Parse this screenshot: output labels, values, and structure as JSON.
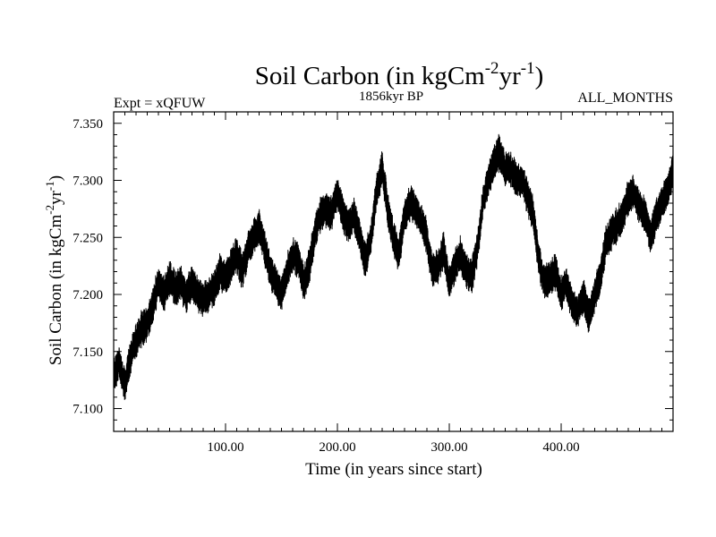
{
  "chart_data": {
    "type": "line",
    "title": "Soil Carbon (in kgCm",
    "title_sup1": "-2",
    "title_mid": "yr",
    "title_sup2": "-1",
    "title_end": ")",
    "left_label": "Expt = xQFUW",
    "center_label": "1856kyr BP",
    "right_label": "ALL_MONTHS",
    "xlabel": "Time (in years since start)",
    "ylabel": "Soil Carbon (in kgCm",
    "ylabel_sup1": "-2",
    "ylabel_mid": "yr",
    "ylabel_sup2": "-1",
    "ylabel_end": ")",
    "xlim": [
      0,
      500
    ],
    "ylim": [
      7.08,
      7.36
    ],
    "x_ticks": [
      {
        "value": 100,
        "label": "100.00"
      },
      {
        "value": 200,
        "label": "200.00"
      },
      {
        "value": 300,
        "label": "300.00"
      },
      {
        "value": 400,
        "label": "400.00"
      }
    ],
    "y_ticks": [
      {
        "value": 7.1,
        "label": "7.100"
      },
      {
        "value": 7.15,
        "label": "7.150"
      },
      {
        "value": 7.2,
        "label": "7.200"
      },
      {
        "value": 7.25,
        "label": "7.250"
      },
      {
        "value": 7.3,
        "label": "7.300"
      },
      {
        "value": 7.35,
        "label": "7.350"
      }
    ],
    "grid": false,
    "line_color": "#000000",
    "series": [
      {
        "x": [
          0,
          5,
          10,
          15,
          20,
          25,
          30,
          35,
          40,
          45,
          50,
          55,
          60,
          65,
          70,
          75,
          80,
          85,
          90,
          95,
          100,
          105,
          110,
          115,
          120,
          125,
          130,
          135,
          140,
          145,
          150,
          155,
          160,
          165,
          170,
          175,
          180,
          185,
          190,
          195,
          200,
          205,
          210,
          215,
          220,
          225,
          230,
          235,
          240,
          245,
          250,
          255,
          260,
          265,
          270,
          275,
          280,
          285,
          290,
          295,
          300,
          305,
          310,
          315,
          320,
          325,
          330,
          335,
          340,
          345,
          350,
          355,
          360,
          365,
          370,
          375,
          380,
          385,
          390,
          395,
          400,
          405,
          410,
          415,
          420,
          425,
          430,
          435,
          440,
          445,
          450,
          455,
          460,
          465,
          470,
          475,
          480,
          485,
          490,
          495,
          500
        ],
        "y": [
          7.13,
          7.14,
          7.12,
          7.145,
          7.16,
          7.17,
          7.175,
          7.19,
          7.21,
          7.2,
          7.215,
          7.205,
          7.21,
          7.2,
          7.21,
          7.2,
          7.195,
          7.2,
          7.205,
          7.22,
          7.215,
          7.225,
          7.235,
          7.22,
          7.24,
          7.25,
          7.26,
          7.24,
          7.22,
          7.21,
          7.2,
          7.22,
          7.235,
          7.23,
          7.21,
          7.225,
          7.255,
          7.27,
          7.275,
          7.27,
          7.29,
          7.27,
          7.26,
          7.27,
          7.25,
          7.23,
          7.25,
          7.29,
          7.31,
          7.275,
          7.25,
          7.235,
          7.27,
          7.28,
          7.275,
          7.265,
          7.25,
          7.22,
          7.225,
          7.24,
          7.21,
          7.225,
          7.235,
          7.22,
          7.215,
          7.24,
          7.28,
          7.3,
          7.315,
          7.325,
          7.31,
          7.31,
          7.3,
          7.3,
          7.285,
          7.27,
          7.23,
          7.21,
          7.215,
          7.22,
          7.2,
          7.21,
          7.19,
          7.185,
          7.2,
          7.18,
          7.2,
          7.215,
          7.245,
          7.255,
          7.26,
          7.27,
          7.285,
          7.29,
          7.275,
          7.27,
          7.25,
          7.27,
          7.28,
          7.29,
          7.31
        ],
        "noise_amplitude": 0.013
      }
    ]
  }
}
